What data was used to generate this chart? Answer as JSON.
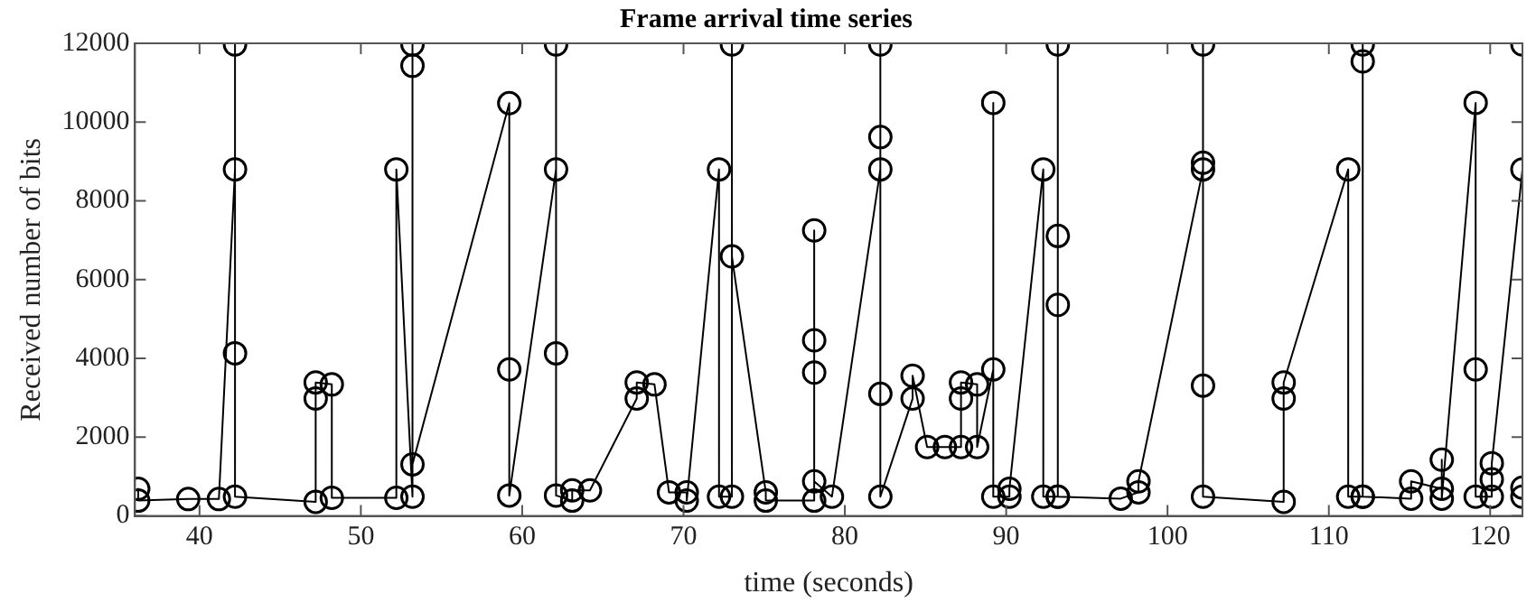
{
  "chart_data": {
    "type": "line",
    "title": "Frame arrival time series",
    "xlabel": "time (seconds)",
    "ylabel": "Received number of bits",
    "xlim": [
      36,
      122
    ],
    "xticks": [
      40,
      50,
      60,
      70,
      80,
      90,
      100,
      110,
      120
    ],
    "ylim": [
      0,
      12000
    ],
    "yticks": [
      0,
      2000,
      4000,
      6000,
      8000,
      10000,
      12000
    ],
    "grid": false,
    "legend": false,
    "marker": "circle",
    "line_style": "solid",
    "series": [
      {
        "color": "#000000",
        "x": [
          36.2,
          36.2,
          39.3,
          41.2,
          42.2,
          42.2,
          42.2,
          42.2,
          47.2,
          47.2,
          47.2,
          48.2,
          48.2,
          52.2,
          52.2,
          53.2,
          53.2,
          53.2,
          53.2,
          59.2,
          59.2,
          59.2,
          62.1,
          62.1,
          62.1,
          62.1,
          63.1,
          63.1,
          64.2,
          67.1,
          67.1,
          68.2,
          69.1,
          70.2,
          70.2,
          72.2,
          72.2,
          73.0,
          73.0,
          73.0,
          75.1,
          75.1,
          78.1,
          78.1,
          78.1,
          78.1,
          78.1,
          79.2,
          82.2,
          82.2,
          82.2,
          82.2,
          82.2,
          84.2,
          84.2,
          85.1,
          86.2,
          87.2,
          87.2,
          87.2,
          88.2,
          88.2,
          89.2,
          89.2,
          89.2,
          90.2,
          90.2,
          92.3,
          92.3,
          93.2,
          93.2,
          93.2,
          93.2,
          93.2,
          97.1,
          98.2,
          98.2,
          102.2,
          102.2,
          102.2,
          102.2,
          102.2,
          107.2,
          107.2,
          107.2,
          111.2,
          111.2,
          112.1,
          112.1,
          112.1,
          112.1,
          115.1,
          115.1,
          117.0,
          117.0,
          117.0,
          119.1,
          119.1,
          119.1,
          120.1,
          120.1,
          120.1,
          122.0,
          122.0,
          122.0,
          122.0
        ],
        "values": [
          690,
          390,
          430,
          430,
          8800,
          11970,
          4130,
          490,
          360,
          2980,
          3390,
          3340,
          460,
          460,
          8800,
          490,
          11970,
          11430,
          1310,
          10480,
          3720,
          520,
          8800,
          11970,
          4130,
          520,
          390,
          650,
          650,
          2980,
          3390,
          3340,
          600,
          600,
          390,
          8800,
          490,
          490,
          11970,
          6590,
          600,
          390,
          390,
          7250,
          4460,
          3640,
          880,
          490,
          8800,
          9620,
          11970,
          3100,
          490,
          2980,
          3560,
          1750,
          1750,
          1750,
          2980,
          3390,
          3340,
          1750,
          3720,
          10490,
          490,
          490,
          690,
          8800,
          490,
          490,
          11970,
          7110,
          5360,
          490,
          440,
          600,
          880,
          8800,
          8970,
          11970,
          3310,
          490,
          360,
          2980,
          3390,
          8800,
          490,
          490,
          11970,
          11540,
          490,
          440,
          880,
          690,
          1430,
          440,
          10490,
          3720,
          490,
          490,
          930,
          1340,
          8800,
          11970,
          720,
          490
        ]
      }
    ]
  }
}
